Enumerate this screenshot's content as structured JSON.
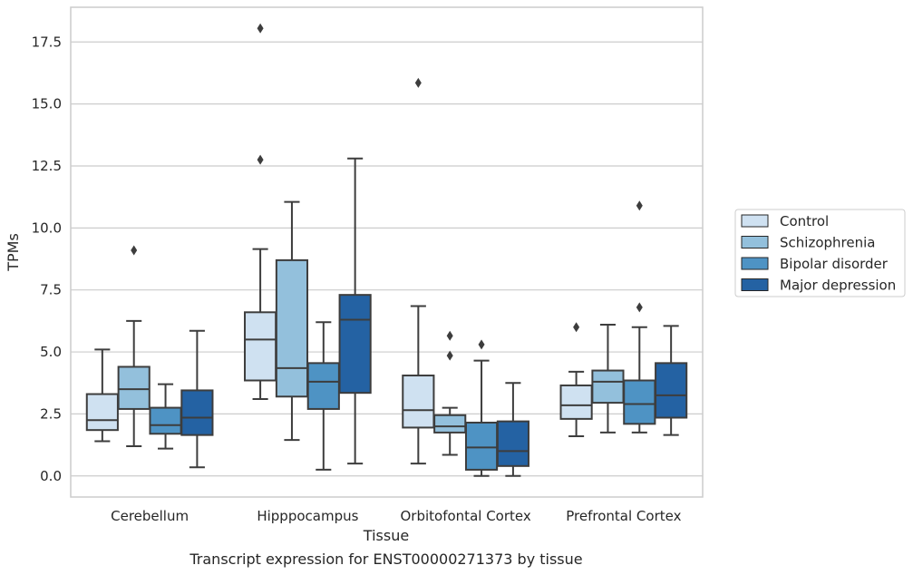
{
  "chart_data": {
    "type": "box",
    "xlabel": "Tissue",
    "ylabel": "TPMs",
    "caption": "Transcript expression for ENST00000271373 by tissue",
    "categories": [
      "Cerebellum",
      "Hipppocampus",
      "Orbitofontal Cortex",
      "Prefrontal Cortex"
    ],
    "ylim": [
      -0.85,
      18.9
    ],
    "yticks": [
      0.0,
      2.5,
      5.0,
      7.5,
      10.0,
      12.5,
      15.0,
      17.5
    ],
    "ytick_labels": [
      "0.0",
      "2.5",
      "5.0",
      "7.5",
      "10.0",
      "12.5",
      "15.0",
      "17.5"
    ],
    "grid": "horizontal",
    "legend_position": "right",
    "colors": {
      "Control": "#cfe1f1",
      "Schizophrenia": "#93c0dc",
      "Bipolar disorder": "#4e93c4",
      "Major depression": "#2462a3",
      "edge": "#3d3d3d",
      "grid": "#cccccc"
    },
    "series": [
      {
        "name": "Control",
        "boxes": [
          {
            "whislo": 1.4,
            "q1": 1.85,
            "med": 2.25,
            "q3": 3.3,
            "whishi": 5.1,
            "fliers": []
          },
          {
            "whislo": 3.1,
            "q1": 3.85,
            "med": 5.5,
            "q3": 6.6,
            "whishi": 9.15,
            "fliers": [
              18.05,
              12.75
            ]
          },
          {
            "whislo": 0.5,
            "q1": 1.95,
            "med": 2.65,
            "q3": 4.05,
            "whishi": 6.85,
            "fliers": [
              15.85
            ]
          },
          {
            "whislo": 1.6,
            "q1": 2.3,
            "med": 2.85,
            "q3": 3.65,
            "whishi": 4.2,
            "fliers": [
              6.0
            ]
          }
        ]
      },
      {
        "name": "Schizophrenia",
        "boxes": [
          {
            "whislo": 1.2,
            "q1": 2.7,
            "med": 3.5,
            "q3": 4.4,
            "whishi": 6.25,
            "fliers": [
              9.1
            ]
          },
          {
            "whislo": 1.45,
            "q1": 3.2,
            "med": 4.35,
            "q3": 8.7,
            "whishi": 11.05,
            "fliers": []
          },
          {
            "whislo": 0.85,
            "q1": 1.75,
            "med": 2.0,
            "q3": 2.45,
            "whishi": 2.75,
            "fliers": [
              5.65,
              4.85
            ]
          },
          {
            "whislo": 1.75,
            "q1": 2.95,
            "med": 3.8,
            "q3": 4.25,
            "whishi": 6.1,
            "fliers": []
          }
        ]
      },
      {
        "name": "Bipolar disorder",
        "boxes": [
          {
            "whislo": 1.1,
            "q1": 1.7,
            "med": 2.05,
            "q3": 2.75,
            "whishi": 3.7,
            "fliers": []
          },
          {
            "whislo": 0.25,
            "q1": 2.7,
            "med": 3.8,
            "q3": 4.55,
            "whishi": 6.2,
            "fliers": []
          },
          {
            "whislo": 0.0,
            "q1": 0.25,
            "med": 1.15,
            "q3": 2.15,
            "whishi": 4.65,
            "fliers": [
              5.3
            ]
          },
          {
            "whislo": 1.75,
            "q1": 2.1,
            "med": 2.9,
            "q3": 3.85,
            "whishi": 6.0,
            "fliers": [
              10.9,
              6.8
            ]
          }
        ]
      },
      {
        "name": "Major depression",
        "boxes": [
          {
            "whislo": 0.35,
            "q1": 1.65,
            "med": 2.35,
            "q3": 3.45,
            "whishi": 5.85,
            "fliers": []
          },
          {
            "whislo": 0.5,
            "q1": 3.35,
            "med": 6.3,
            "q3": 7.3,
            "whishi": 12.8,
            "fliers": []
          },
          {
            "whislo": 0.0,
            "q1": 0.4,
            "med": 1.0,
            "q3": 2.2,
            "whishi": 3.75,
            "fliers": []
          },
          {
            "whislo": 1.65,
            "q1": 2.35,
            "med": 3.25,
            "q3": 4.55,
            "whishi": 6.05,
            "fliers": []
          }
        ]
      }
    ]
  }
}
